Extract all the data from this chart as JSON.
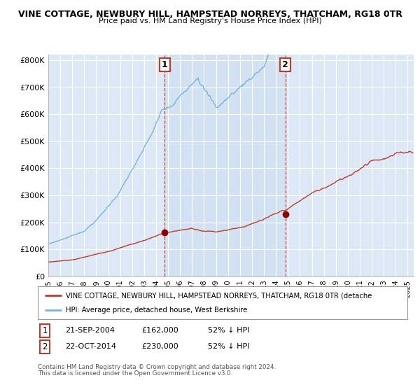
{
  "title_line1": "VINE COTTAGE, NEWBURY HILL, HAMPSTEAD NORREYS, THATCHAM, RG18 0TR",
  "title_line2": "Price paid vs. HM Land Registry's House Price Index (HPI)",
  "hpi_color": "#7ab4d8",
  "price_color": "#c0392b",
  "dashed_color": "#c0392b",
  "background_plot": "#dce8f5",
  "background_fig": "#ffffff",
  "grid_color": "#ffffff",
  "shade_color": "#ccdff0",
  "legend_label_red": "VINE COTTAGE, NEWBURY HILL, HAMPSTEAD NORREYS, THATCHAM, RG18 0TR (detache",
  "legend_label_blue": "HPI: Average price, detached house, West Berkshire",
  "marker1_date": "21-SEP-2004",
  "marker1_price": "£162,000",
  "marker1_hpi": "52% ↓ HPI",
  "marker1_x": 2004.72,
  "marker1_y": 162000,
  "marker2_date": "22-OCT-2014",
  "marker2_price": "£230,000",
  "marker2_hpi": "52% ↓ HPI",
  "marker2_x": 2014.8,
  "marker2_y": 230000,
  "footer_line1": "Contains HM Land Registry data © Crown copyright and database right 2024.",
  "footer_line2": "This data is licensed under the Open Government Licence v3.0.",
  "ylim": [
    0,
    820000
  ],
  "yticks": [
    0,
    100000,
    200000,
    300000,
    400000,
    500000,
    600000,
    700000,
    800000
  ],
  "ytick_labels": [
    "£0",
    "£100K",
    "£200K",
    "£300K",
    "£400K",
    "£500K",
    "£600K",
    "£700K",
    "£800K"
  ],
  "xlim_start": 1995.0,
  "xlim_end": 2025.5
}
